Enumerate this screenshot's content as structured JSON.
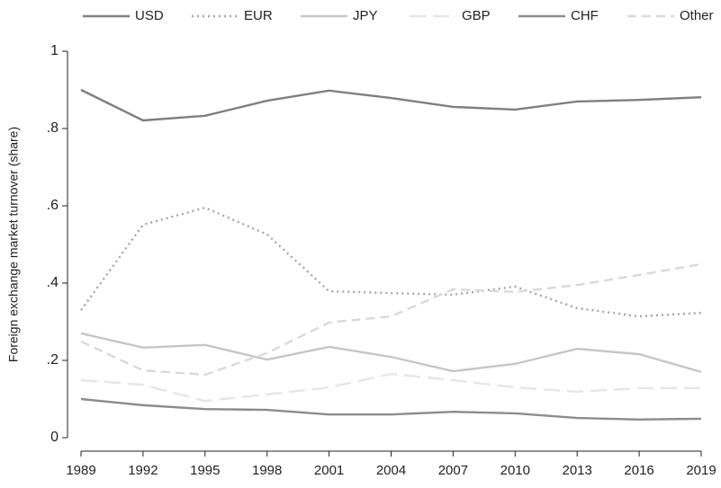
{
  "chart_data": {
    "type": "line",
    "y_label": "Foreign exchange market turnover (share)",
    "categories": [
      "1989",
      "1992",
      "1995",
      "1998",
      "2001",
      "2004",
      "2007",
      "2010",
      "2013",
      "2016",
      "2019"
    ],
    "series": [
      {
        "name": "USD",
        "color": "#7f7f7f",
        "style": "solid",
        "values": [
          0.9,
          0.821,
          0.833,
          0.872,
          0.898,
          0.879,
          0.856,
          0.849,
          0.87,
          0.874,
          0.881
        ]
      },
      {
        "name": "EUR",
        "color": "#a6a6a6",
        "style": "dotted",
        "values": [
          0.33,
          0.551,
          0.595,
          0.526,
          0.379,
          0.374,
          0.37,
          0.391,
          0.335,
          0.314,
          0.323
        ]
      },
      {
        "name": "JPY",
        "color": "#c6c6c6",
        "style": "solid",
        "values": [
          0.27,
          0.233,
          0.24,
          0.202,
          0.235,
          0.209,
          0.172,
          0.191,
          0.23,
          0.216,
          0.17
        ]
      },
      {
        "name": "GBP",
        "color": "#e6e6e6",
        "style": "longdash",
        "values": [
          0.149,
          0.137,
          0.095,
          0.112,
          0.13,
          0.165,
          0.149,
          0.13,
          0.119,
          0.128,
          0.128
        ]
      },
      {
        "name": "CHF",
        "color": "#8c8c8c",
        "style": "solid",
        "values": [
          0.1,
          0.084,
          0.074,
          0.072,
          0.06,
          0.06,
          0.067,
          0.063,
          0.051,
          0.047,
          0.049
        ]
      },
      {
        "name": "Other",
        "color": "#d9d9d9",
        "style": "dashed",
        "values": [
          0.249,
          0.174,
          0.163,
          0.219,
          0.298,
          0.314,
          0.384,
          0.377,
          0.395,
          0.421,
          0.449
        ]
      }
    ],
    "ylim": [
      0,
      1
    ],
    "yticks": [
      0,
      {
        "value": 0.2,
        "label": ".2"
      },
      {
        "value": 0.4,
        "label": ".4"
      },
      {
        "value": 0.6,
        "label": ".6"
      },
      {
        "value": 0.8,
        "label": ".8"
      },
      1
    ],
    "legend": "top"
  }
}
